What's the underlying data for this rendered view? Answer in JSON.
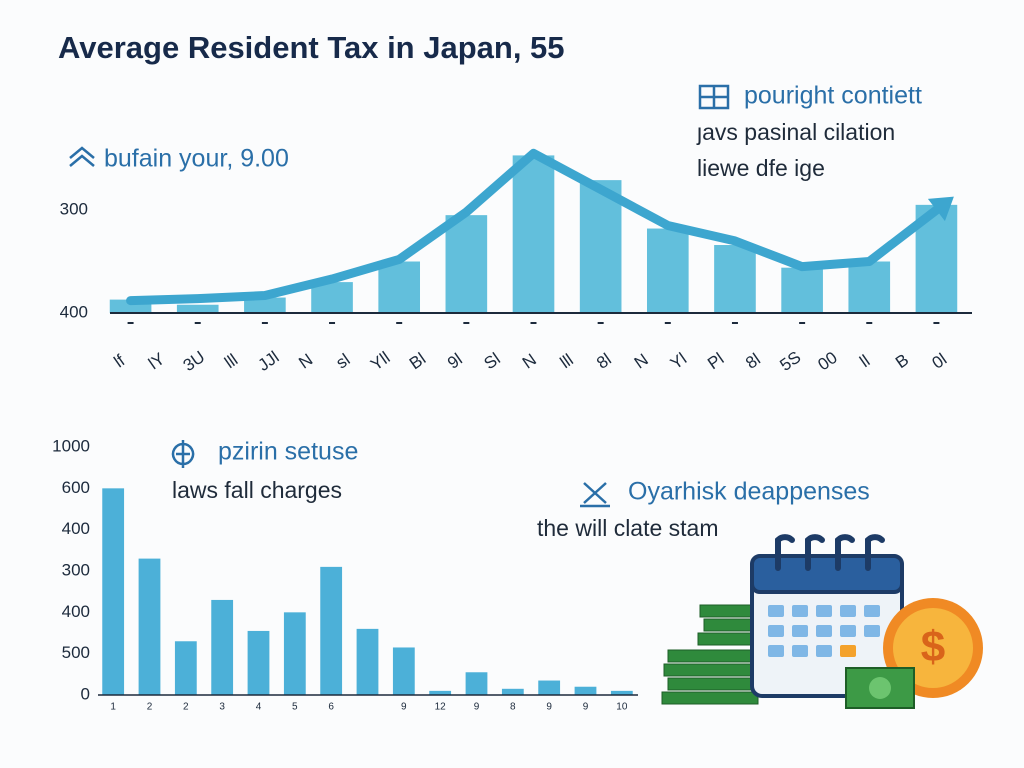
{
  "chart_data": [
    {
      "type": "bar",
      "title": "Average Resident Tax in Japan, 55",
      "annotations": [
        "bufain your, 9.00",
        "pouright contiett",
        "ȷavs pasinal cilation",
        "liewe dfe ige"
      ],
      "x_tick_texts": [
        "lf",
        "lY",
        "3U",
        "lll",
        "JJl",
        "N",
        "sl",
        "Yll",
        "Bl",
        "9l",
        "Sl",
        "N",
        "lll",
        "8l",
        "N",
        "Yl",
        "Pl",
        "8l",
        "5S",
        "00",
        "ll",
        "B",
        "0l"
      ],
      "series": [
        {
          "kind": "bar",
          "color": "#62bfdc",
          "values": [
            0.13,
            0.08,
            0.15,
            0.3,
            0.5,
            0.95,
            1.53,
            1.29,
            0.82,
            0.66,
            0.44,
            0.5,
            1.05
          ]
        },
        {
          "kind": "line",
          "color": "#3da6cf",
          "values": [
            0.12,
            0.14,
            0.17,
            0.33,
            0.52,
            0.98,
            1.55,
            1.2,
            0.85,
            0.7,
            0.45,
            0.5,
            1.0
          ]
        }
      ],
      "ylim": [
        0,
        1.6
      ],
      "yticks": [
        {
          "value": 0,
          "label": "400"
        },
        {
          "value": 1,
          "label": "300"
        }
      ]
    },
    {
      "type": "bar",
      "annotations": [
        "pzirin setuse",
        "laws fall charges",
        "Oyarhisk deappenses",
        "the will clate stam"
      ],
      "coin_symbol": "$",
      "categories": [
        "1",
        "2",
        "2",
        "3",
        "4",
        "5",
        "6",
        null,
        "9",
        "12",
        "9",
        "8",
        "9",
        "9",
        "10"
      ],
      "values": [
        5.0,
        3.3,
        1.3,
        2.3,
        1.55,
        2.0,
        3.1,
        1.6,
        1.15,
        0.1,
        0.55,
        0.15,
        0.35,
        0.2,
        0.1
      ],
      "color": "#4cb0d8",
      "ylim": [
        0,
        6
      ],
      "yticks": [
        {
          "value": 0,
          "label": "0"
        },
        {
          "value": 1,
          "label": "500"
        },
        {
          "value": 2,
          "label": "400"
        },
        {
          "value": 3,
          "label": "300"
        },
        {
          "value": 4,
          "label": "400"
        },
        {
          "value": 5,
          "label": "600"
        },
        {
          "value": 6,
          "label": "1000"
        }
      ]
    }
  ]
}
